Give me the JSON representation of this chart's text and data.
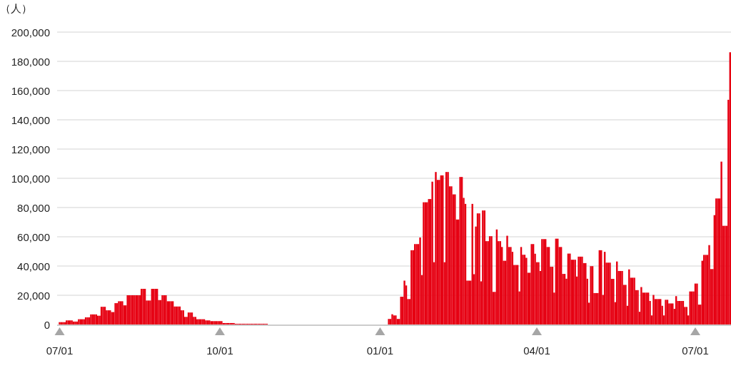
{
  "chart_data": {
    "type": "bar",
    "ylabel": "（人）",
    "color": "#e60012",
    "grid": "y",
    "ylim": [
      0,
      200000
    ],
    "categories": [
      "07/01",
      null,
      null,
      null,
      null,
      null,
      null,
      null,
      null,
      null,
      null,
      null,
      null,
      null,
      null,
      null,
      null,
      null,
      null,
      null,
      null,
      null,
      null,
      null,
      null,
      null,
      null,
      null,
      null,
      null,
      null,
      null,
      null,
      null,
      null,
      null,
      null,
      null,
      null,
      null,
      null,
      null,
      null,
      null,
      null,
      null,
      null,
      null,
      null,
      null,
      null,
      null,
      null,
      null,
      null,
      null,
      null,
      null,
      null,
      null,
      null,
      null,
      null,
      null,
      null,
      null,
      null,
      null,
      null,
      null,
      null,
      null,
      null,
      null,
      null,
      null,
      null,
      null,
      null,
      null,
      null,
      null,
      null,
      null,
      null,
      null,
      null,
      null,
      null,
      null,
      null,
      null,
      "10/01",
      null,
      null,
      null,
      null,
      null,
      null,
      null,
      null,
      null,
      null,
      null,
      null,
      null,
      null,
      null,
      null,
      null,
      null,
      null,
      null,
      null,
      null,
      null,
      null,
      null,
      null,
      null,
      null,
      null,
      null,
      null,
      null,
      null,
      null,
      null,
      null,
      null,
      null,
      null,
      null,
      null,
      null,
      null,
      null,
      null,
      null,
      null,
      null,
      null,
      null,
      null,
      null,
      null,
      null,
      null,
      null,
      null,
      null,
      null,
      null,
      null,
      null,
      null,
      null,
      null,
      null,
      null,
      null,
      null,
      null,
      null,
      null,
      null,
      null,
      null,
      null,
      null,
      null,
      null,
      null,
      null,
      null,
      null,
      null,
      null,
      null,
      null,
      null,
      null,
      null,
      null,
      "01/01",
      null,
      null,
      null,
      null,
      null,
      null,
      null,
      null,
      null,
      null,
      null,
      null,
      null,
      null,
      null,
      null,
      null,
      null,
      null,
      null,
      null,
      null,
      null,
      null,
      null,
      null,
      null,
      null,
      null,
      null,
      null,
      null,
      null,
      null,
      null,
      null,
      null,
      null,
      null,
      null,
      null,
      null,
      null,
      null,
      null,
      null,
      null,
      null,
      null,
      null,
      null,
      null,
      null,
      null,
      null,
      null,
      null,
      null,
      null,
      null,
      null,
      null,
      null,
      null,
      null,
      null,
      null,
      null,
      null,
      null,
      null,
      null,
      null,
      null,
      null,
      null,
      null,
      null,
      null,
      null,
      null,
      null,
      null,
      null,
      null,
      null,
      null,
      null,
      null,
      "04/01",
      null,
      null,
      null,
      null,
      null,
      null,
      null,
      null,
      null,
      null,
      null,
      null,
      null,
      null,
      null,
      null,
      null,
      null,
      null,
      null,
      null,
      null,
      null,
      null,
      null,
      null,
      null,
      null,
      null,
      null,
      null,
      null,
      null,
      null,
      null,
      null,
      null,
      null,
      null,
      null,
      null,
      null,
      null,
      null,
      null,
      null,
      null,
      null,
      null,
      null,
      null,
      null,
      null,
      null,
      null,
      null,
      null,
      null,
      null,
      null,
      null,
      null,
      null,
      null,
      null,
      null,
      null,
      null,
      null,
      null,
      null,
      null,
      null,
      null,
      null,
      null,
      null,
      null,
      null,
      null,
      null,
      null,
      null,
      null,
      null,
      null,
      null,
      null,
      null,
      null,
      "07/01",
      null,
      null,
      null,
      null,
      null,
      null,
      null,
      null,
      null,
      null,
      null,
      null,
      null,
      null,
      null,
      null,
      null,
      null,
      null,
      null
    ],
    "yticks": [
      {
        "value": 0,
        "label": "0"
      },
      {
        "value": 20000,
        "label": "20,000"
      },
      {
        "value": 40000,
        "label": "40,000"
      },
      {
        "value": 60000,
        "label": "60,000"
      },
      {
        "value": 80000,
        "label": "80,000"
      },
      {
        "value": 100000,
        "label": "100,000"
      },
      {
        "value": 120000,
        "label": "120,000"
      },
      {
        "value": 140000,
        "label": "140,000"
      },
      {
        "value": 160000,
        "label": "160,000"
      },
      {
        "value": 180000,
        "label": "180,000"
      },
      {
        "value": 200000,
        "label": "200,000"
      }
    ],
    "values": [
      1600,
      1600,
      1600,
      1600,
      2800,
      2800,
      2800,
      2800,
      2000,
      2000,
      2000,
      3600,
      3600,
      3600,
      3600,
      4900,
      4900,
      4900,
      6900,
      6900,
      6900,
      6900,
      6000,
      6000,
      12100,
      12100,
      12100,
      9700,
      9700,
      9700,
      8500,
      8500,
      14600,
      14600,
      15900,
      15900,
      15900,
      13100,
      13100,
      20000,
      20000,
      20000,
      20000,
      20000,
      20000,
      20000,
      20000,
      24400,
      24400,
      24400,
      16400,
      16400,
      16400,
      24400,
      24400,
      24400,
      24400,
      16700,
      16700,
      20000,
      20000,
      20000,
      15900,
      15900,
      15900,
      15900,
      12300,
      12300,
      12300,
      12300,
      9700,
      9700,
      5200,
      5200,
      8200,
      8200,
      8200,
      5200,
      5200,
      3600,
      3600,
      3600,
      3600,
      3600,
      2800,
      2800,
      2800,
      2300,
      2300,
      2300,
      2300,
      2300,
      2300,
      2300,
      1000,
      1000,
      1000,
      1000,
      1000,
      1000,
      1000,
      500,
      500,
      500,
      500,
      500,
      500,
      500,
      500,
      500,
      500,
      500,
      500,
      500,
      500,
      500,
      500,
      500,
      500,
      500,
      null,
      null,
      null,
      null,
      null,
      null,
      null,
      null,
      null,
      null,
      null,
      null,
      null,
      null,
      null,
      null,
      null,
      null,
      null,
      null,
      null,
      null,
      null,
      null,
      null,
      null,
      null,
      null,
      null,
      null,
      null,
      null,
      null,
      null,
      null,
      null,
      null,
      null,
      null,
      null,
      null,
      null,
      null,
      null,
      null,
      null,
      null,
      null,
      null,
      null,
      null,
      null,
      null,
      null,
      null,
      null,
      null,
      null,
      null,
      null,
      null,
      null,
      null,
      null,
      null,
      null,
      null,
      null,
      null,
      3800,
      3800,
      7000,
      6200,
      6200,
      3800,
      3800,
      19000,
      19000,
      30000,
      26700,
      17400,
      17400,
      50800,
      50800,
      55000,
      55000,
      55000,
      59500,
      33800,
      83600,
      83600,
      83600,
      85800,
      85800,
      97700,
      42600,
      104300,
      98900,
      98900,
      102000,
      102000,
      42600,
      104300,
      104300,
      94500,
      94500,
      89000,
      89000,
      71800,
      71800,
      100900,
      100900,
      86600,
      82500,
      30000,
      30000,
      30000,
      82500,
      34400,
      67000,
      76000,
      76000,
      29500,
      78000,
      78000,
      57000,
      57000,
      60400,
      60400,
      22300,
      22300,
      65000,
      57000,
      57000,
      53000,
      43600,
      43600,
      60700,
      53000,
      53000,
      49700,
      40700,
      40700,
      40700,
      22600,
      53000,
      47700,
      47700,
      45600,
      35400,
      35400,
      55000,
      55000,
      48400,
      42600,
      42600,
      36600,
      58400,
      58400,
      58400,
      53000,
      53000,
      39500,
      39500,
      21800,
      58700,
      58700,
      53000,
      53000,
      34600,
      34600,
      31300,
      48500,
      48500,
      44300,
      44300,
      44300,
      32800,
      46400,
      46400,
      46400,
      42000,
      42000,
      31300,
      14900,
      39900,
      39900,
      21500,
      21500,
      21500,
      50800,
      50800,
      20200,
      49700,
      42300,
      42300,
      42300,
      31200,
      31200,
      15300,
      43100,
      36600,
      36600,
      36600,
      27100,
      27100,
      12800,
      37700,
      32000,
      32000,
      32000,
      23500,
      23500,
      8700,
      25600,
      21800,
      21800,
      21800,
      21800,
      16100,
      6200,
      20200,
      17400,
      17400,
      17400,
      17400,
      12800,
      6200,
      16900,
      16900,
      14400,
      14400,
      14400,
      10700,
      19400,
      16100,
      16100,
      16100,
      16100,
      12000,
      12000,
      6200,
      22600,
      22600,
      22600,
      28000,
      28000,
      13600,
      13600,
      43600,
      47600,
      47600,
      47600,
      54300,
      37900,
      37900,
      74800,
      86200,
      86200,
      86200,
      111400,
      67500,
      67500,
      67500,
      153700,
      186200
    ]
  }
}
